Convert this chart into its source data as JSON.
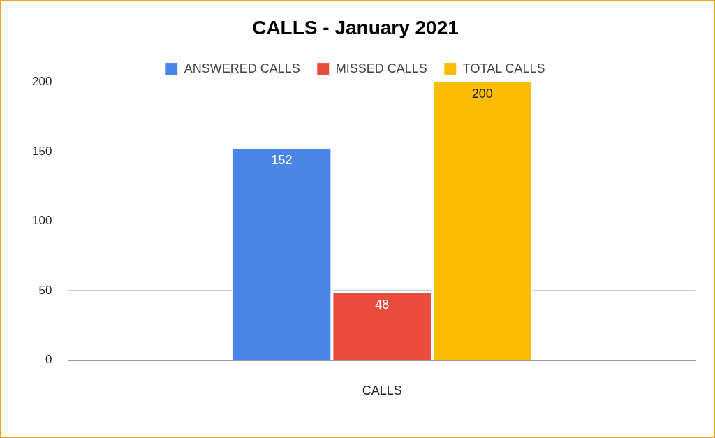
{
  "chart_data": {
    "type": "bar",
    "title": "CALLS - January 2021",
    "categories": [
      "CALLS"
    ],
    "series": [
      {
        "name": "ANSWERED CALLS",
        "color": "#4a86e8",
        "values": [
          152
        ]
      },
      {
        "name": "MISSED CALLS",
        "color": "#e94b3c",
        "values": [
          48
        ]
      },
      {
        "name": "TOTAL CALLS",
        "color": "#fbbc04",
        "values": [
          200
        ]
      }
    ],
    "ylim": [
      0,
      200
    ],
    "yticks": [
      0,
      50,
      100,
      150,
      200
    ],
    "grid": "y",
    "legend": "top",
    "data_labels": true
  }
}
